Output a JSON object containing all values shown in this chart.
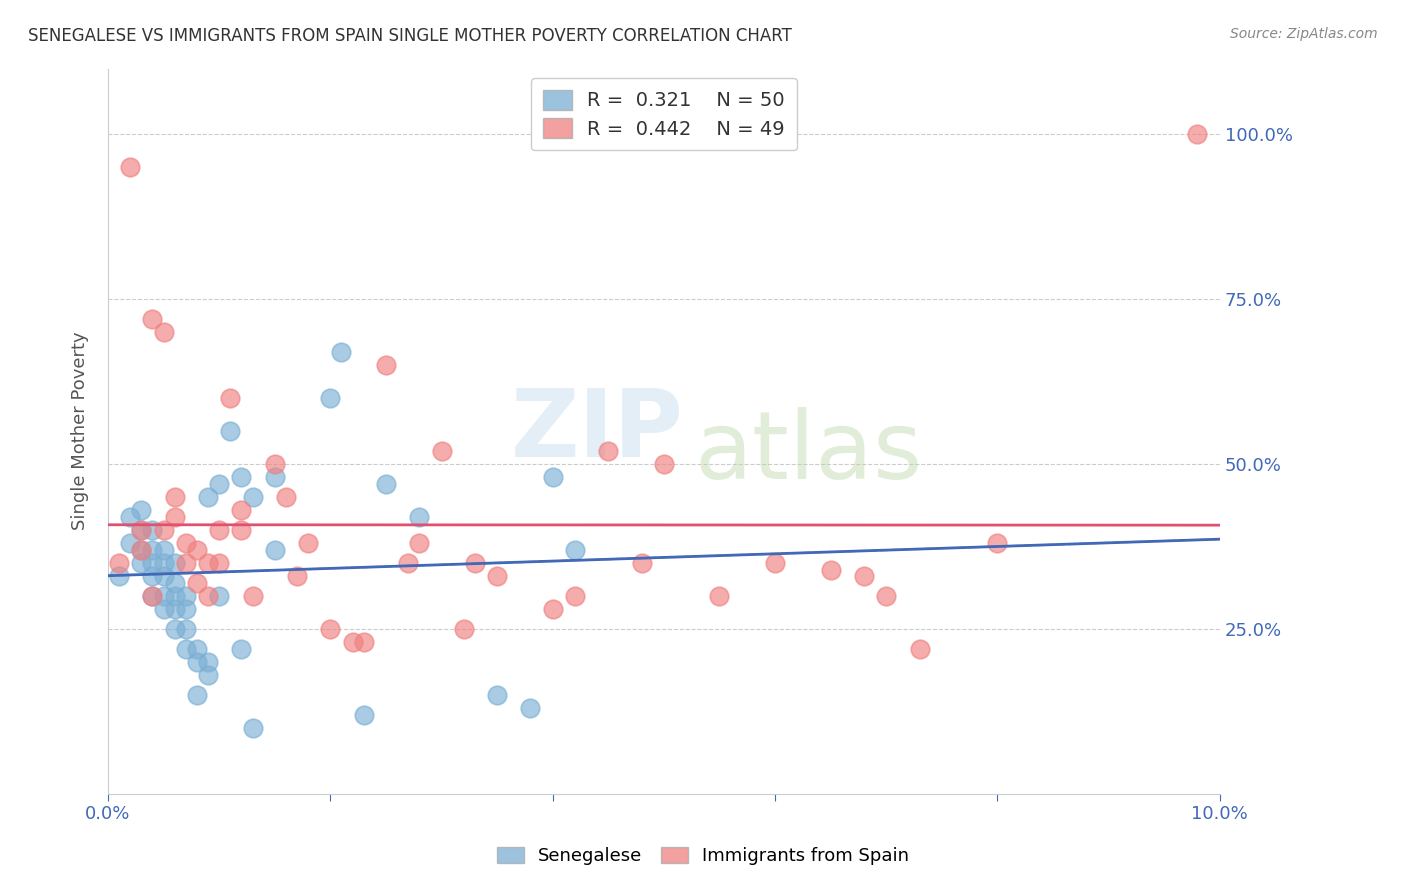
{
  "title": "SENEGALESE VS IMMIGRANTS FROM SPAIN SINGLE MOTHER POVERTY CORRELATION CHART",
  "source": "Source: ZipAtlas.com",
  "ylabel": "Single Mother Poverty",
  "xlim": [
    0.0,
    0.1
  ],
  "ylim": [
    0.0,
    1.1
  ],
  "xtick_positions": [
    0.0,
    0.02,
    0.04,
    0.06,
    0.08,
    0.1
  ],
  "xtick_labels": [
    "0.0%",
    "",
    "",
    "",
    "",
    "10.0%"
  ],
  "yticks_right": [
    0.25,
    0.5,
    0.75,
    1.0
  ],
  "ytick_labels_right": [
    "25.0%",
    "50.0%",
    "75.0%",
    "100.0%"
  ],
  "legend_r_blue": "0.321",
  "legend_n_blue": "50",
  "legend_r_pink": "0.442",
  "legend_n_pink": "49",
  "legend_label_blue": "Senegalese",
  "legend_label_pink": "Immigrants from Spain",
  "watermark_zip": "ZIP",
  "watermark_atlas": "atlas",
  "blue_color": "#7bafd4",
  "pink_color": "#f08080",
  "blue_line_color": "#4169b8",
  "pink_line_color": "#e05070",
  "background_color": "#ffffff",
  "grid_color": "#cccccc",
  "title_color": "#333333",
  "axis_color": "#4169b8",
  "blue_scatter_x": [
    0.001,
    0.002,
    0.002,
    0.003,
    0.003,
    0.003,
    0.003,
    0.004,
    0.004,
    0.004,
    0.004,
    0.004,
    0.005,
    0.005,
    0.005,
    0.005,
    0.005,
    0.006,
    0.006,
    0.006,
    0.006,
    0.006,
    0.007,
    0.007,
    0.007,
    0.007,
    0.008,
    0.008,
    0.008,
    0.009,
    0.009,
    0.009,
    0.01,
    0.01,
    0.011,
    0.012,
    0.012,
    0.013,
    0.013,
    0.015,
    0.015,
    0.02,
    0.021,
    0.023,
    0.025,
    0.028,
    0.035,
    0.038,
    0.04,
    0.042
  ],
  "blue_scatter_y": [
    0.33,
    0.38,
    0.42,
    0.35,
    0.37,
    0.4,
    0.43,
    0.3,
    0.33,
    0.35,
    0.37,
    0.4,
    0.28,
    0.3,
    0.33,
    0.35,
    0.37,
    0.25,
    0.28,
    0.3,
    0.32,
    0.35,
    0.22,
    0.25,
    0.28,
    0.3,
    0.2,
    0.22,
    0.15,
    0.18,
    0.2,
    0.45,
    0.3,
    0.47,
    0.55,
    0.48,
    0.22,
    0.45,
    0.1,
    0.48,
    0.37,
    0.6,
    0.67,
    0.12,
    0.47,
    0.42,
    0.15,
    0.13,
    0.48,
    0.37
  ],
  "pink_scatter_x": [
    0.001,
    0.002,
    0.003,
    0.003,
    0.004,
    0.004,
    0.005,
    0.005,
    0.006,
    0.006,
    0.007,
    0.007,
    0.008,
    0.008,
    0.009,
    0.009,
    0.01,
    0.01,
    0.011,
    0.012,
    0.012,
    0.013,
    0.015,
    0.016,
    0.017,
    0.018,
    0.02,
    0.022,
    0.023,
    0.025,
    0.027,
    0.028,
    0.03,
    0.032,
    0.033,
    0.035,
    0.04,
    0.042,
    0.045,
    0.048,
    0.05,
    0.055,
    0.06,
    0.065,
    0.068,
    0.07,
    0.073,
    0.08,
    0.098
  ],
  "pink_scatter_y": [
    0.35,
    0.95,
    0.37,
    0.4,
    0.3,
    0.72,
    0.7,
    0.4,
    0.42,
    0.45,
    0.35,
    0.38,
    0.32,
    0.37,
    0.3,
    0.35,
    0.35,
    0.4,
    0.6,
    0.4,
    0.43,
    0.3,
    0.5,
    0.45,
    0.33,
    0.38,
    0.25,
    0.23,
    0.23,
    0.65,
    0.35,
    0.38,
    0.52,
    0.25,
    0.35,
    0.33,
    0.28,
    0.3,
    0.52,
    0.35,
    0.5,
    0.3,
    0.35,
    0.34,
    0.33,
    0.3,
    0.22,
    0.38,
    1.0
  ]
}
